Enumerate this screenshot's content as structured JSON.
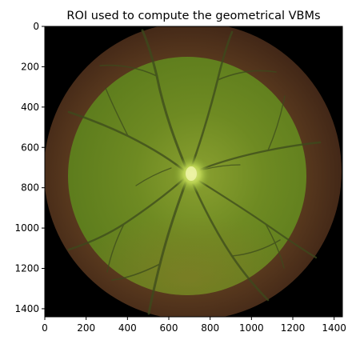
{
  "title": "ROI used to compute the geometrical VBMs",
  "image": {
    "description_name": "fundus-image-with-roi-overlay",
    "background_color": "#000000",
    "fundus_color": "#5a3a20",
    "roi_color": "#6a8a22",
    "optic_disc_color": "#c8d860",
    "vessel_color": "#3e4a1c"
  },
  "x_axis": {
    "range": [
      0,
      1440
    ],
    "ticks": [
      {
        "value": 0,
        "label": "0"
      },
      {
        "value": 200,
        "label": "200"
      },
      {
        "value": 400,
        "label": "400"
      },
      {
        "value": 600,
        "label": "600"
      },
      {
        "value": 800,
        "label": "800"
      },
      {
        "value": 1000,
        "label": "1000"
      },
      {
        "value": 1200,
        "label": "1200"
      },
      {
        "value": 1400,
        "label": "1400"
      }
    ]
  },
  "y_axis": {
    "range": [
      0,
      1440
    ],
    "inverted": true,
    "ticks": [
      {
        "value": 0,
        "label": "0"
      },
      {
        "value": 200,
        "label": "200"
      },
      {
        "value": 400,
        "label": "400"
      },
      {
        "value": 600,
        "label": "600"
      },
      {
        "value": 800,
        "label": "800"
      },
      {
        "value": 1000,
        "label": "1000"
      },
      {
        "value": 1200,
        "label": "1200"
      },
      {
        "value": 1400,
        "label": "1400"
      }
    ]
  }
}
